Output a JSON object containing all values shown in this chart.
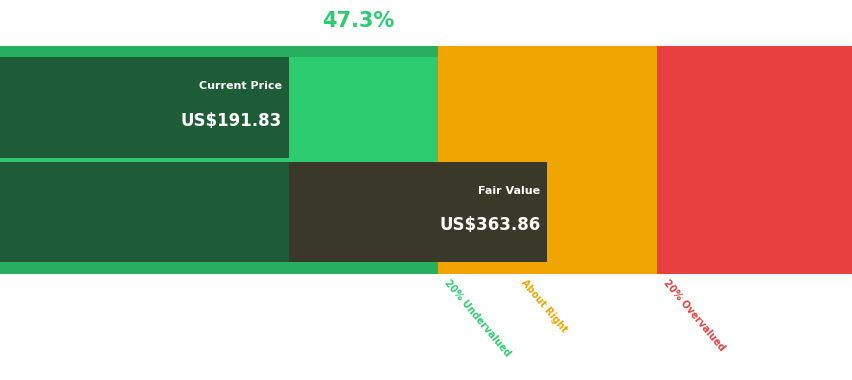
{
  "pct_undervalued": "47.3%",
  "label_undervalued": "Undervalued",
  "current_price_label": "Current Price",
  "current_price_value": "US$191.83",
  "fair_value_label": "Fair Value",
  "fair_value_value": "US$363.86",
  "current_price": 191.83,
  "fair_value": 363.86,
  "color_light_green": "#2ecc71",
  "color_dark_green": "#1e5c37",
  "color_mid_green": "#27ae60",
  "color_amber": "#f0a500",
  "color_red": "#e84040",
  "color_dark_box_cp": "#1e5c37",
  "color_dark_box_fv": "#3a3828",
  "color_header_green": "#2ecc71",
  "color_white": "#ffffff",
  "color_bg": "#ffffff",
  "label_20under": "20% Undervalued",
  "label_aboutright": "About Right",
  "label_20over": "20% Overvalued",
  "fig_width": 8.53,
  "fig_height": 3.8
}
